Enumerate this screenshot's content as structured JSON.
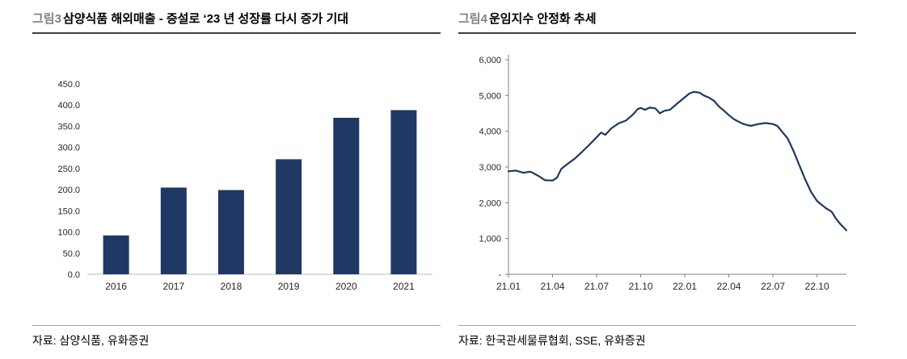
{
  "figure3": {
    "label": "그림3",
    "title": "삼양식품 해외매출 - 증설로 ‘23 년 성장률 다시 증가 기대",
    "source": "자료: 삼양식품, 유화증권"
  },
  "figure4": {
    "label": "그림4",
    "title": "운임지수 안정화 추세",
    "source": "자료: 한국관세물류협회, SSE, 유화증권"
  },
  "chart_data": [
    {
      "type": "bar",
      "title": "삼양식품 해외매출",
      "categories": [
        "2016",
        "2017",
        "2018",
        "2019",
        "2020",
        "2021"
      ],
      "values": [
        92,
        205,
        199,
        272,
        370,
        388
      ],
      "ylim": [
        0,
        450
      ],
      "ytick_step": 50,
      "ytick_format": "one-decimal",
      "bar_color": "#1F3864",
      "grid": false,
      "legend": "none"
    },
    {
      "type": "line",
      "title": "운임지수",
      "x_ticks": [
        "21.01",
        "21.04",
        "21.07",
        "21.10",
        "22.01",
        "22.04",
        "22.07",
        "22.10"
      ],
      "x_tick_month_index": [
        0,
        3,
        6,
        9,
        12,
        15,
        18,
        21
      ],
      "x_range_months": [
        0,
        23
      ],
      "ylim": [
        0,
        6000
      ],
      "ytick_step": 1000,
      "ytick_zero_label": "-",
      "line_color": "#1F3864",
      "grid": false,
      "legend": "none",
      "points": [
        [
          0,
          2880
        ],
        [
          0.5,
          2900
        ],
        [
          1,
          2840
        ],
        [
          1.5,
          2870
        ],
        [
          2,
          2760
        ],
        [
          2.5,
          2630
        ],
        [
          3,
          2620
        ],
        [
          3.3,
          2700
        ],
        [
          3.6,
          2950
        ],
        [
          4,
          3080
        ],
        [
          4.5,
          3230
        ],
        [
          5,
          3420
        ],
        [
          5.5,
          3620
        ],
        [
          6,
          3830
        ],
        [
          6.3,
          3960
        ],
        [
          6.6,
          3900
        ],
        [
          7,
          4080
        ],
        [
          7.5,
          4220
        ],
        [
          8,
          4300
        ],
        [
          8.5,
          4480
        ],
        [
          8.8,
          4620
        ],
        [
          9,
          4650
        ],
        [
          9.3,
          4600
        ],
        [
          9.6,
          4660
        ],
        [
          10,
          4640
        ],
        [
          10.3,
          4500
        ],
        [
          10.6,
          4570
        ],
        [
          11,
          4600
        ],
        [
          11.5,
          4780
        ],
        [
          12,
          4950
        ],
        [
          12.3,
          5050
        ],
        [
          12.6,
          5100
        ],
        [
          13,
          5080
        ],
        [
          13.3,
          5000
        ],
        [
          13.6,
          4950
        ],
        [
          14,
          4850
        ],
        [
          14.3,
          4700
        ],
        [
          14.6,
          4600
        ],
        [
          15,
          4450
        ],
        [
          15.3,
          4350
        ],
        [
          15.6,
          4280
        ],
        [
          16,
          4200
        ],
        [
          16.5,
          4150
        ],
        [
          17,
          4200
        ],
        [
          17.5,
          4230
        ],
        [
          18,
          4200
        ],
        [
          18.3,
          4150
        ],
        [
          18.6,
          4000
        ],
        [
          19,
          3800
        ],
        [
          19.4,
          3450
        ],
        [
          19.8,
          3050
        ],
        [
          20.2,
          2650
        ],
        [
          20.6,
          2300
        ],
        [
          21,
          2050
        ],
        [
          21.3,
          1950
        ],
        [
          21.6,
          1850
        ],
        [
          22,
          1750
        ],
        [
          22.3,
          1550
        ],
        [
          22.6,
          1400
        ],
        [
          23,
          1230
        ]
      ]
    }
  ]
}
